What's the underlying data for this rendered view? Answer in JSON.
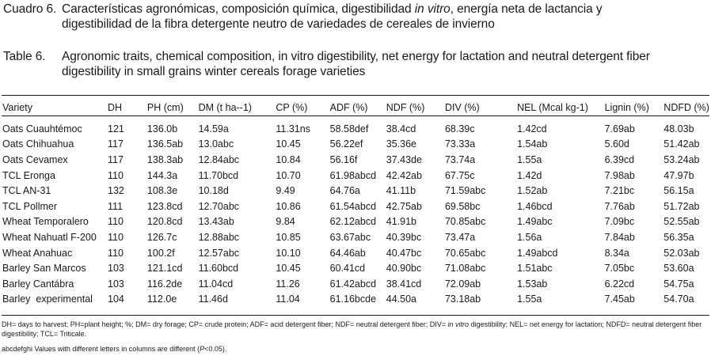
{
  "caption_es": {
    "label": "Cuadro 6.",
    "line1_a": "Características agronómicas, composición química, digestibilidad ",
    "line1_italic": "in vitro",
    "line1_b": ", energía neta de lactancia y",
    "line2": "digestibilidad de la fibra detergente neutro de variedades de cereales de invierno"
  },
  "caption_en": {
    "label": "Table 6.",
    "line1": "Agronomic traits, chemical composition, in vitro digestibility, net energy for lactation and neutral detergent fiber",
    "line2": "digestibility in small grains winter cereals forage varieties"
  },
  "table": {
    "headers": [
      "Variety",
      "DH",
      "PH (cm)",
      "DM (t ha--1)",
      "CP (%)",
      "ADF (%)",
      "NDF (%)",
      "DIV (%)",
      "NEL (Mcal kg-1)",
      "Lignin (%)",
      "NDFD (%)"
    ],
    "rows": [
      [
        "Oats Cuauhtémoc",
        "121",
        "136.0b",
        "14.59a",
        "11.31ns",
        "58.58def",
        "38.4cd",
        "68.39c",
        "1.42cd",
        "7.69ab",
        "48.03b"
      ],
      [
        "Oats Chihuahua",
        "117",
        "136.5ab",
        "13.0abc",
        "10.45",
        "56.22ef",
        "35.36e",
        "73.33a",
        "1.54ab",
        "5.60d",
        "51.42ab"
      ],
      [
        "Oats Cevamex",
        "117",
        "138.3ab",
        "12.84abc",
        "10.84",
        "56.16f",
        "37.43de",
        "73.74a",
        "1.55a",
        "6.39cd",
        "53.24ab"
      ],
      [
        "TCL Eronga",
        "110",
        "144.3a",
        "11.70bcd",
        "10.70",
        "61.98abcd",
        "42.42ab",
        "67.75c",
        "1.42d",
        "7.98ab",
        "47.97b"
      ],
      [
        "TCL AN-31",
        "132",
        "108.3e",
        "10.18d",
        "9.49",
        "64.76a",
        "41.11b",
        "71.59abc",
        "1.52ab",
        "7.21bc",
        "56.15a"
      ],
      [
        "TCL Pollmer",
        "111",
        "123.8cd",
        "12.70abc",
        "10.86",
        "61.54abcd",
        "42.75ab",
        "69.58bc",
        "1.46bcd",
        "7.76ab",
        "51.72ab"
      ],
      [
        "Wheat Temporalero",
        "110",
        "120.8cd",
        "13.43ab",
        "9.84",
        "62.12abcd",
        "41.91b",
        "70.85abc",
        "1.49abc",
        "7.09bc",
        "52.55ab"
      ],
      [
        "Wheat Nahuatl F-200",
        "110",
        "126.7c",
        "12.88abc",
        "10.85",
        "63.67abc",
        "40.39bc",
        "73.47a",
        "1.56a",
        "7.84ab",
        "56.35a"
      ],
      [
        "Wheat Anahuac",
        "110",
        "100.2f",
        "12.57abc",
        "10.10",
        "64.46ab",
        "40.47bc",
        "70.65abc",
        "1.49abcd",
        "8.34a",
        "52.03ab"
      ],
      [
        "Barley San Marcos",
        "103",
        "121.1cd",
        "11.60bcd",
        "10.45",
        "60.41cd",
        "40.90bc",
        "71.08abc",
        "1.51abc",
        "7.05bc",
        "53.60a"
      ],
      [
        "Barley Cantábra",
        "103",
        "116.2de",
        "11.04cd",
        "11.26",
        "61.42abcd",
        "38.41cd",
        "72.09ab",
        "1.53ab",
        "6.22cd",
        "54.75a"
      ],
      [
        "Barley  experimental",
        "104",
        "112.0e",
        "11.46d",
        "11.04",
        "61.16bcde",
        "44.50a",
        "73.18ab",
        "1.55a",
        "7.45ab",
        "54.70a"
      ]
    ]
  },
  "notes": {
    "abbrev_a": "DH= days to harvest; PH=plant height; %; DM= dry forage; CP= crude protein; ADF= acid detergent fiber; NDF= neutral detergent fiber; DIV=  ",
    "abbrev_italic": "in vitro",
    "abbrev_b": " digestibility; NEL= net energy for lactation; NDFD= neutral detergent fiber digestibility; TCL= Triticale.",
    "letters_a": "abcdefghi Values with different letters in columns are different (",
    "letters_italic": "P",
    "letters_b": "<0.05)."
  }
}
